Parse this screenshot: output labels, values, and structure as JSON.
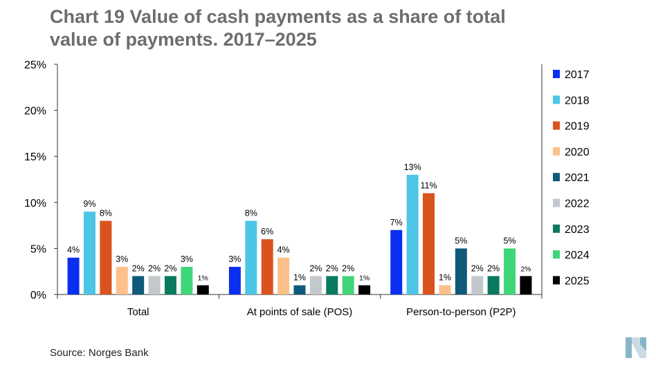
{
  "title_line1": "Chart 19 Value of cash payments as a share of total",
  "title_line2": "value of payments. 2017–2025",
  "source": "Source: Norges Bank",
  "logo_icon": "norges-bank-logo-icon",
  "chart_data": {
    "type": "bar",
    "title": "Chart 19 Value of cash payments as a share of total value of payments. 2017–2025",
    "categories": [
      "Total",
      "At points of sale (POS)",
      "Person-to-person (P2P)"
    ],
    "ylim": [
      0,
      25
    ],
    "yticks": [
      "0%",
      "5%",
      "10%",
      "15%",
      "20%",
      "25%"
    ],
    "ytick_values": [
      0,
      5,
      10,
      15,
      20,
      25
    ],
    "grid": false,
    "legend_position": "right",
    "series": [
      {
        "name": "2017",
        "color": "#0a2ff0",
        "values": [
          4,
          3,
          7
        ],
        "labels": [
          "4%",
          "3%",
          "7%"
        ]
      },
      {
        "name": "2018",
        "color": "#4cc5e6",
        "values": [
          9,
          8,
          13
        ],
        "labels": [
          "9%",
          "8%",
          "13%"
        ]
      },
      {
        "name": "2019",
        "color": "#d9531e",
        "values": [
          8,
          6,
          11
        ],
        "labels": [
          "8%",
          "6%",
          "11%"
        ]
      },
      {
        "name": "2020",
        "color": "#fcc08a",
        "values": [
          3,
          4,
          1
        ],
        "labels": [
          "3%",
          "4%",
          "1%"
        ]
      },
      {
        "name": "2021",
        "color": "#0f5a78",
        "values": [
          2,
          1,
          5
        ],
        "labels": [
          "2%",
          "1%",
          "5%"
        ]
      },
      {
        "name": "2022",
        "color": "#c3c8cc",
        "values": [
          2,
          2,
          2
        ],
        "labels": [
          "2%",
          "2%",
          "2%"
        ]
      },
      {
        "name": "2023",
        "color": "#0a7a5e",
        "values": [
          2,
          2,
          2
        ],
        "labels": [
          "2%",
          "2%",
          "2%"
        ]
      },
      {
        "name": "2024",
        "color": "#3fd67a",
        "values": [
          3,
          2,
          5
        ],
        "labels": [
          "3%",
          "2%",
          "5%"
        ]
      },
      {
        "name": "2025",
        "color": "#000000",
        "values": [
          1,
          1,
          2
        ],
        "labels": [
          "1%",
          "1%",
          "2%"
        ]
      }
    ]
  }
}
